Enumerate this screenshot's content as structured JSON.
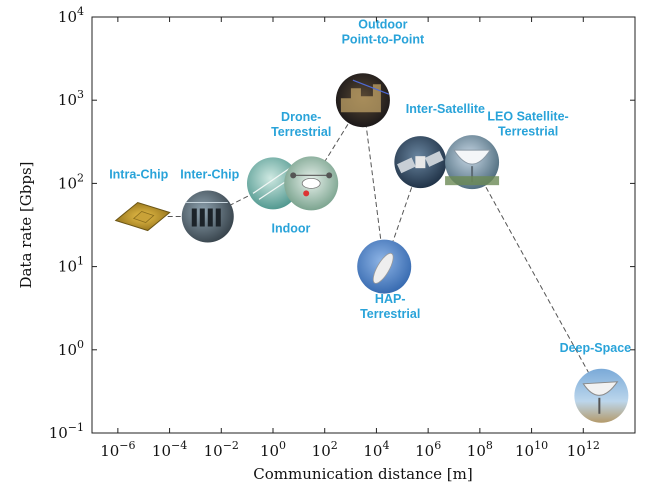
{
  "chart_data": {
    "type": "scatter",
    "xlabel": "Communication distance [m]",
    "ylabel": "Data rate [Gbps]",
    "x_scale": "log",
    "y_scale": "log",
    "xlim": [
      1e-07,
      100000000000000.0
    ],
    "ylim": [
      0.1,
      10000
    ],
    "x_ticks": [
      {
        "value": 1e-06,
        "base": "10",
        "exp": "−6"
      },
      {
        "value": 0.0001,
        "base": "10",
        "exp": "−4"
      },
      {
        "value": 0.01,
        "base": "10",
        "exp": "−2"
      },
      {
        "value": 1,
        "base": "10",
        "exp": "0"
      },
      {
        "value": 100.0,
        "base": "10",
        "exp": "2"
      },
      {
        "value": 10000.0,
        "base": "10",
        "exp": "4"
      },
      {
        "value": 1000000.0,
        "base": "10",
        "exp": "6"
      },
      {
        "value": 100000000.0,
        "base": "10",
        "exp": "8"
      },
      {
        "value": 10000000000.0,
        "base": "10",
        "exp": "10"
      },
      {
        "value": 1000000000000.0,
        "base": "10",
        "exp": "12"
      }
    ],
    "y_ticks": [
      {
        "value": 0.1,
        "base": "10",
        "exp": "−1"
      },
      {
        "value": 1,
        "base": "10",
        "exp": "0"
      },
      {
        "value": 10,
        "base": "10",
        "exp": "1"
      },
      {
        "value": 100,
        "base": "10",
        "exp": "2"
      },
      {
        "value": 1000,
        "base": "10",
        "exp": "3"
      },
      {
        "value": 10000,
        "base": "10",
        "exp": "4"
      }
    ],
    "grid": false,
    "label_color": "#29a3d9",
    "points": [
      {
        "lines": [
          "Intra-Chip"
        ],
        "x": 1e-05,
        "y": 40,
        "icon": "chip-icon"
      },
      {
        "lines": [
          "Inter-Chip"
        ],
        "x": 0.003,
        "y": 40,
        "icon": "circuit-board-icon"
      },
      {
        "lines": [
          "Indoor"
        ],
        "x": 1,
        "y": 100,
        "icon": "indoor-room-icon"
      },
      {
        "lines": [
          "Drone-",
          "Terrestrial"
        ],
        "x": 30,
        "y": 100,
        "icon": "drone-icon"
      },
      {
        "lines": [
          "Outdoor",
          "Point-to-Point"
        ],
        "x": 3000,
        "y": 1000,
        "icon": "city-night-icon"
      },
      {
        "lines": [
          "HAP-",
          "Terrestrial"
        ],
        "x": 20000,
        "y": 10,
        "icon": "airship-icon"
      },
      {
        "lines": [
          "Inter-Satellite"
        ],
        "x": 500000,
        "y": 180,
        "icon": "satellite-icon"
      },
      {
        "lines": [
          "LEO Satellite-",
          "Terrestrial"
        ],
        "x": 50000000,
        "y": 180,
        "icon": "dish-antenna-icon"
      },
      {
        "lines": [
          "Deep-Space"
        ],
        "x": 5000000000000,
        "y": 0.28,
        "icon": "deep-space-dish-icon"
      }
    ],
    "connector_path": [
      [
        1e-05,
        40
      ],
      [
        0.003,
        40
      ],
      [
        1,
        100
      ],
      [
        30,
        100
      ],
      [
        3000,
        1000
      ],
      [
        20000,
        10
      ],
      [
        500000,
        180
      ],
      [
        50000000,
        180
      ],
      [
        5000000000000,
        0.28
      ]
    ]
  }
}
